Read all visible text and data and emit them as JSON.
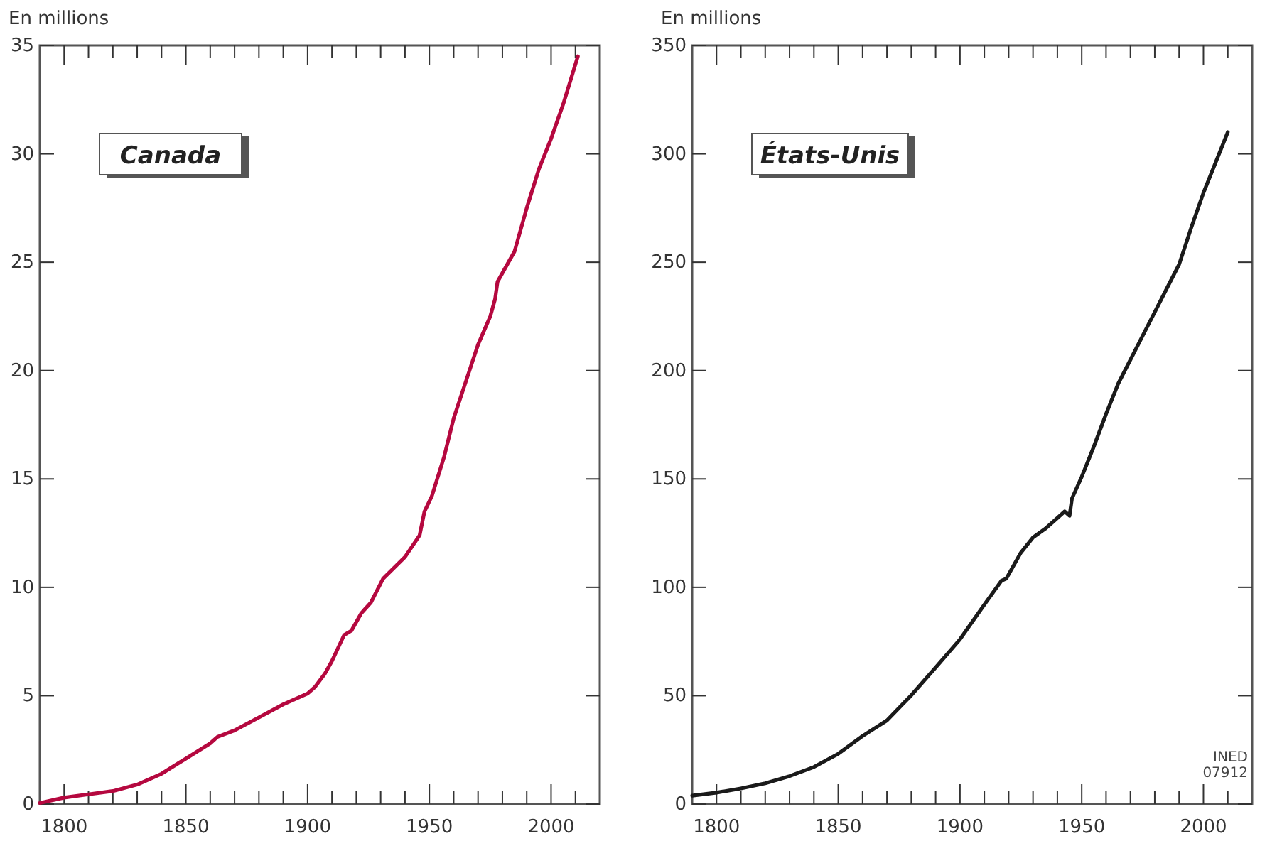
{
  "chart_data": [
    {
      "type": "line",
      "title": "Canada",
      "ylabel": "En millions",
      "xlim": [
        1790,
        2020
      ],
      "ylim": [
        0,
        35
      ],
      "xticks": [
        1800,
        {
          "value": 1810,
          "label": null
        },
        {
          "value": 1820,
          "label": null
        },
        {
          "value": 1830,
          "label": null
        },
        {
          "value": 1840,
          "label": null
        },
        1850,
        {
          "value": 1860,
          "label": null
        },
        {
          "value": 1870,
          "label": null
        },
        {
          "value": 1880,
          "label": null
        },
        {
          "value": 1890,
          "label": null
        },
        1900,
        {
          "value": 1910,
          "label": null
        },
        {
          "value": 1920,
          "label": null
        },
        {
          "value": 1930,
          "label": null
        },
        {
          "value": 1940,
          "label": null
        },
        1950,
        {
          "value": 1960,
          "label": null
        },
        {
          "value": 1970,
          "label": null
        },
        {
          "value": 1980,
          "label": null
        },
        {
          "value": 1990,
          "label": null
        },
        2000,
        {
          "value": 2010,
          "label": null
        }
      ],
      "yticks": [
        0,
        5,
        10,
        15,
        20,
        25,
        30,
        35
      ],
      "grid": false,
      "marker": "none",
      "line_style": "solid",
      "x": [
        1790,
        1800,
        1810,
        1820,
        1830,
        1840,
        1850,
        1860,
        1863,
        1870,
        1880,
        1890,
        1900,
        1903,
        1907,
        1910,
        1915,
        1918,
        1922,
        1926,
        1931,
        1940,
        1946,
        1948,
        1951,
        1956,
        1960,
        1965,
        1970,
        1975,
        1977,
        1978,
        1985,
        1990,
        1995,
        2000,
        2005,
        2011
      ],
      "series": [
        {
          "color": "#b5083f",
          "values": [
            0.05,
            0.3,
            0.45,
            0.6,
            0.9,
            1.4,
            2.1,
            2.8,
            3.1,
            3.4,
            4.0,
            4.6,
            5.1,
            5.4,
            6.0,
            6.6,
            7.8,
            8.0,
            8.8,
            9.3,
            10.4,
            11.4,
            12.4,
            13.5,
            14.2,
            16.0,
            17.8,
            19.5,
            21.2,
            22.5,
            23.3,
            24.1,
            25.5,
            27.5,
            29.3,
            30.7,
            32.3,
            34.5
          ]
        }
      ]
    },
    {
      "type": "line",
      "title": "États-Unis",
      "ylabel": "En millions",
      "xlim": [
        1790,
        2020
      ],
      "ylim": [
        0,
        350
      ],
      "xticks": [
        1800,
        {
          "value": 1810,
          "label": null
        },
        {
          "value": 1820,
          "label": null
        },
        {
          "value": 1830,
          "label": null
        },
        {
          "value": 1840,
          "label": null
        },
        1850,
        {
          "value": 1860,
          "label": null
        },
        {
          "value": 1870,
          "label": null
        },
        {
          "value": 1880,
          "label": null
        },
        {
          "value": 1890,
          "label": null
        },
        1900,
        {
          "value": 1910,
          "label": null
        },
        {
          "value": 1920,
          "label": null
        },
        {
          "value": 1930,
          "label": null
        },
        {
          "value": 1940,
          "label": null
        },
        1950,
        {
          "value": 1960,
          "label": null
        },
        {
          "value": 1970,
          "label": null
        },
        {
          "value": 1980,
          "label": null
        },
        {
          "value": 1990,
          "label": null
        },
        2000,
        {
          "value": 2010,
          "label": null
        }
      ],
      "yticks": [
        0,
        50,
        100,
        150,
        200,
        250,
        300,
        350
      ],
      "grid": false,
      "marker": "none",
      "line_style": "solid",
      "annotations": [
        "INED\n07912"
      ],
      "x": [
        1790,
        1800,
        1810,
        1820,
        1830,
        1840,
        1850,
        1860,
        1870,
        1880,
        1890,
        1900,
        1910,
        1917,
        1919,
        1925,
        1930,
        1935,
        1940,
        1943,
        1945,
        1946,
        1950,
        1955,
        1960,
        1965,
        1970,
        1975,
        1980,
        1985,
        1990,
        1995,
        2000,
        2005,
        2010
      ],
      "series": [
        {
          "color": "#1a1a1a",
          "values": [
            3.9,
            5.3,
            7.2,
            9.6,
            12.9,
            17.1,
            23.2,
            31.4,
            38.6,
            50.2,
            63,
            76,
            92,
            103,
            104,
            116,
            123,
            127,
            132,
            135,
            133,
            141,
            151,
            165,
            180,
            194,
            205,
            216,
            227,
            238,
            249,
            266,
            282,
            296,
            310
          ]
        }
      ]
    }
  ]
}
